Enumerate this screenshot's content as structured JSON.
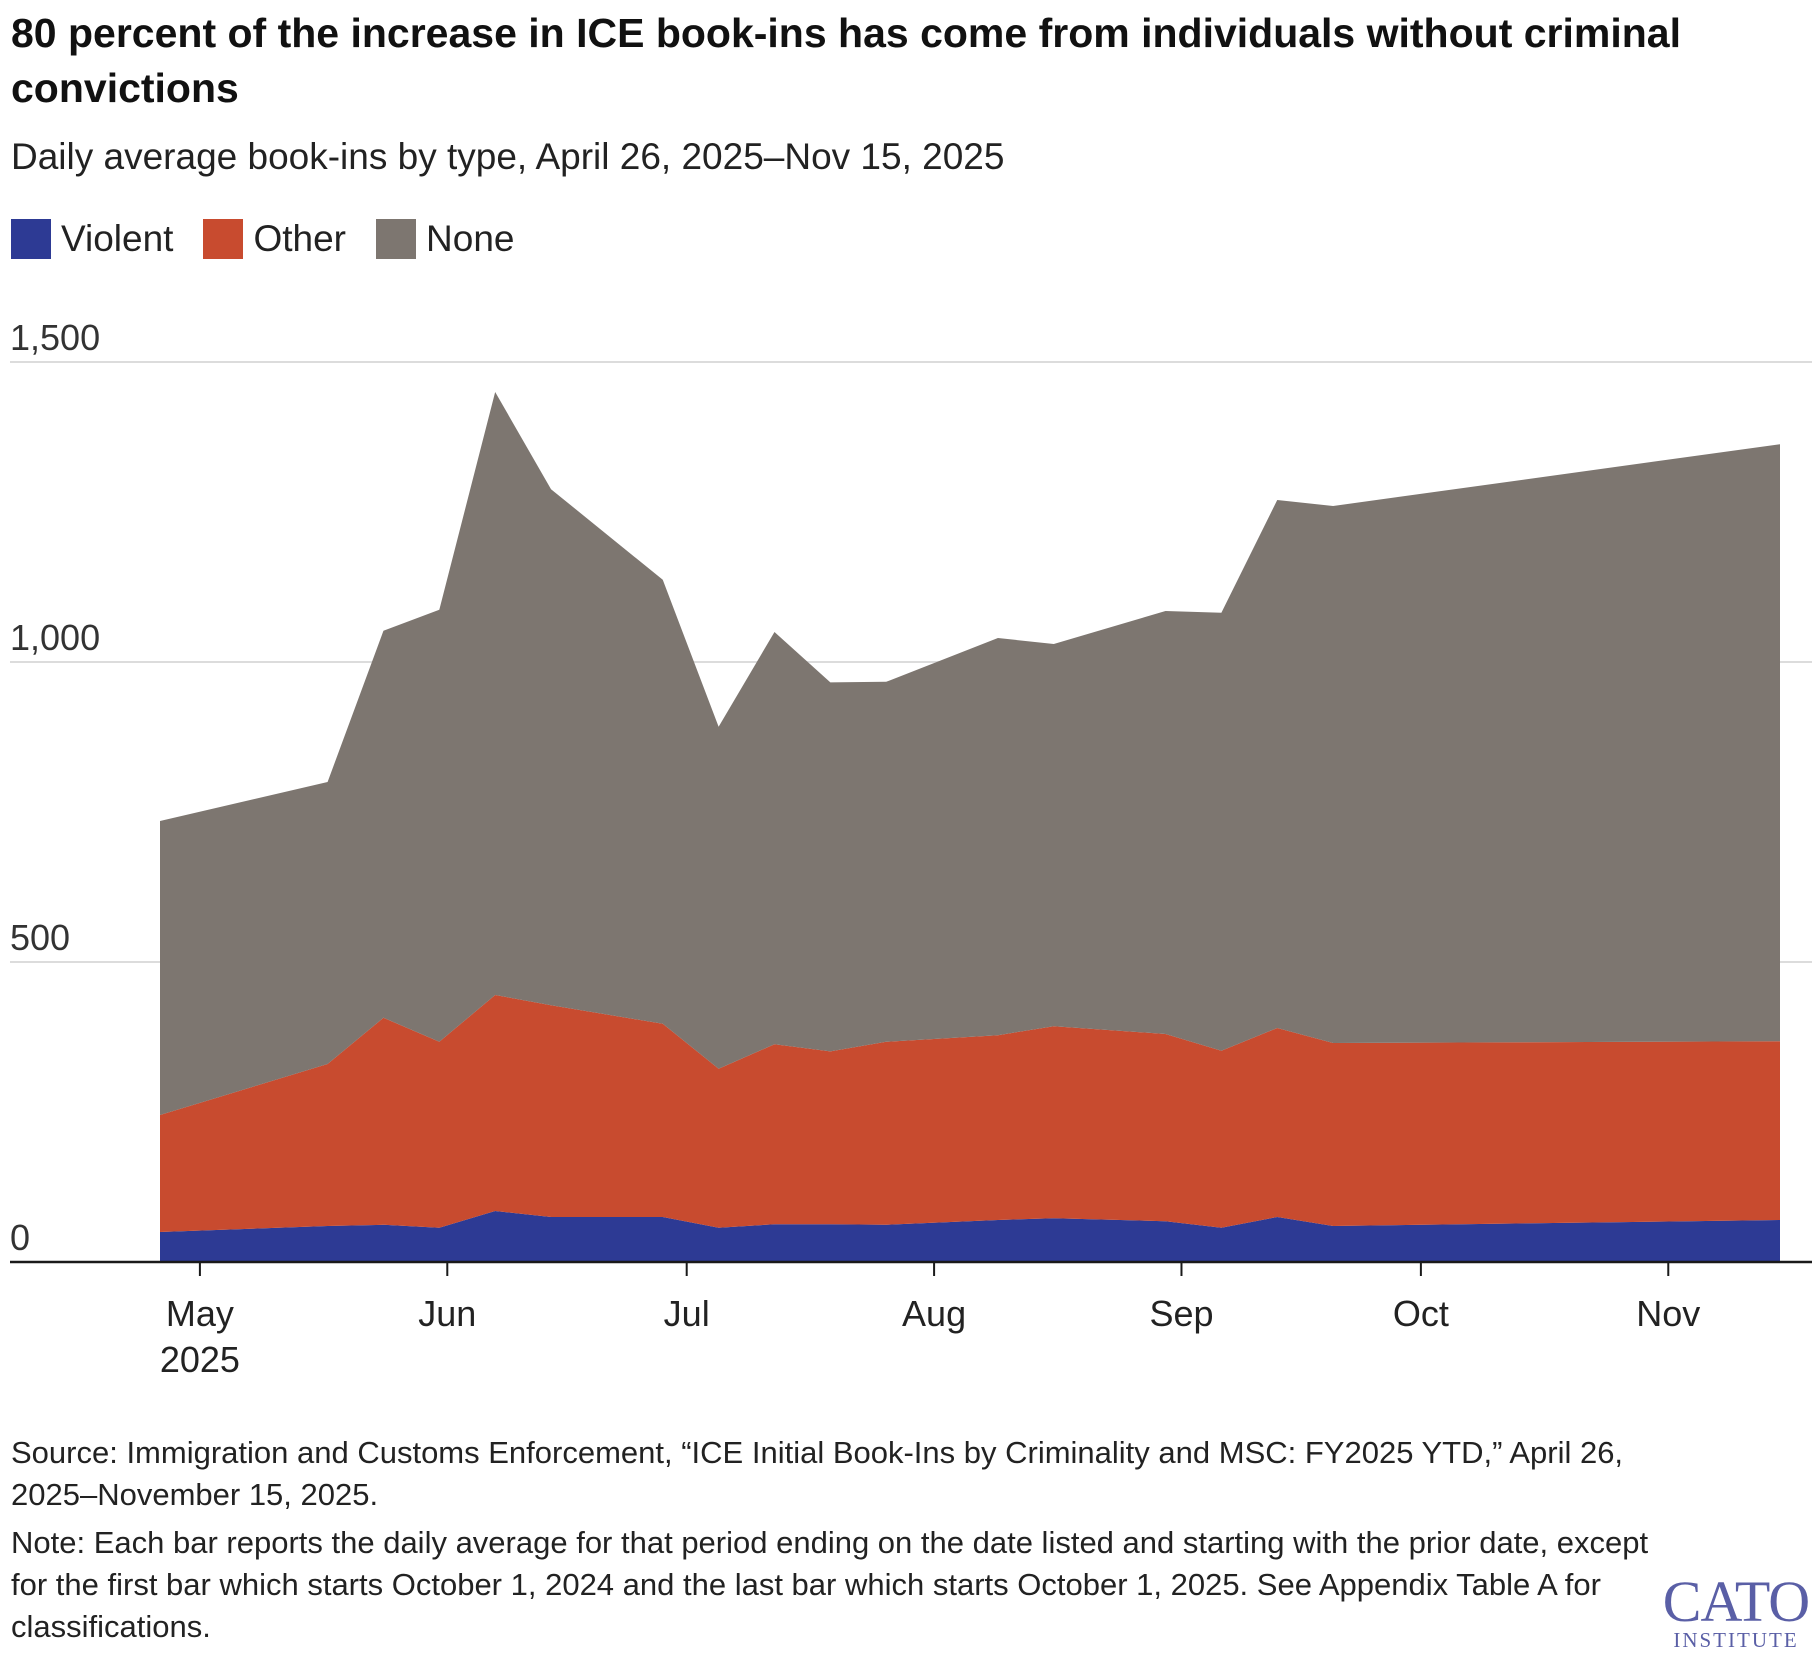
{
  "header": {
    "title": "80 percent of the increase in ICE book-ins has come from individuals without criminal convictions",
    "subtitle": "Daily average book-ins by type, April 26, 2025–Nov 15, 2025"
  },
  "chart_data": {
    "type": "area",
    "stacked": true,
    "title": "80 percent of the increase in ICE book-ins has come from individuals without criminal convictions",
    "subtitle": "Daily average book-ins by type, April 26, 2025–Nov 15, 2025",
    "xlabel": "",
    "ylabel": "",
    "ylim": [
      0,
      1500
    ],
    "yticks": [
      0,
      500,
      1000,
      1500
    ],
    "ytick_labels": [
      "0",
      "500",
      "1,000",
      "1,500"
    ],
    "grid": true,
    "legend_position": "top-left",
    "x_dates": [
      "2025-04-26",
      "2025-05-17",
      "2025-05-24",
      "2025-05-31",
      "2025-06-07",
      "2025-06-14",
      "2025-06-28",
      "2025-07-05",
      "2025-07-12",
      "2025-07-19",
      "2025-07-26",
      "2025-08-09",
      "2025-08-16",
      "2025-08-30",
      "2025-09-06",
      "2025-09-13",
      "2025-09-20",
      "2025-11-15"
    ],
    "x_ticks": [
      {
        "date": "2025-05-01",
        "label": "May",
        "sublabel": "2025"
      },
      {
        "date": "2025-06-01",
        "label": "Jun",
        "sublabel": ""
      },
      {
        "date": "2025-07-01",
        "label": "Jul",
        "sublabel": ""
      },
      {
        "date": "2025-08-01",
        "label": "Aug",
        "sublabel": ""
      },
      {
        "date": "2025-09-01",
        "label": "Sep",
        "sublabel": ""
      },
      {
        "date": "2025-10-01",
        "label": "Oct",
        "sublabel": ""
      },
      {
        "date": "2025-11-01",
        "label": "Nov",
        "sublabel": ""
      }
    ],
    "series": [
      {
        "name": "Violent",
        "color": "#2d3a94",
        "values": [
          50,
          60,
          62,
          57,
          85,
          75,
          75,
          57,
          63,
          63,
          62,
          70,
          73,
          68,
          57,
          75,
          60,
          70
        ]
      },
      {
        "name": "Other",
        "color": "#c84b2f",
        "values": [
          195,
          270,
          345,
          310,
          360,
          353,
          322,
          265,
          300,
          288,
          305,
          308,
          320,
          312,
          295,
          315,
          305,
          298
        ]
      },
      {
        "name": "None",
        "color": "#7d7670",
        "values": [
          490,
          470,
          645,
          720,
          1005,
          860,
          740,
          570,
          687,
          615,
          600,
          662,
          637,
          705,
          730,
          880,
          895,
          995
        ]
      }
    ]
  },
  "footer": {
    "source": "Source: Immigration and Customs Enforcement, “ICE Initial Book-Ins by Criminality and MSC: FY2025 YTD,” April 26, 2025–November 15, 2025.",
    "note": "Note: Each bar reports the daily average for that period ending on the date listed and starting with the prior date, except for the first bar which starts October 1, 2024 and the last bar which starts October 1, 2025. See Appendix Table A for classifications."
  },
  "logo": {
    "main": "CATO",
    "sub": "INSTITUTE"
  }
}
